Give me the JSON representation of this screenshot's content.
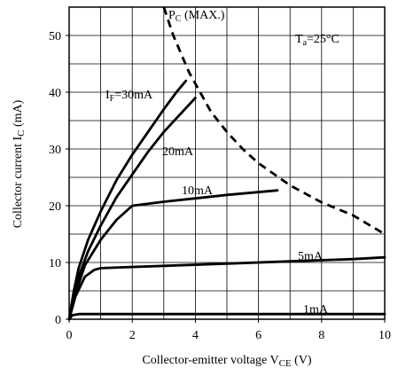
{
  "chart_data": {
    "type": "line",
    "xlabel": "Collector-emitter voltage V",
    "xlabel_sub": "CE",
    "xlabel_unit": " (V)",
    "ylabel": "Collector current I",
    "ylabel_sub": "C",
    "ylabel_unit": " (mA)",
    "xlim": [
      0,
      10
    ],
    "ylim": [
      0,
      55
    ],
    "x_ticks": [
      0,
      2,
      4,
      6,
      8,
      10
    ],
    "y_ticks": [
      0,
      10,
      20,
      30,
      40,
      50
    ],
    "x_tick_labels": [
      "0",
      "2",
      "4",
      "6",
      "8",
      "10"
    ],
    "y_tick_labels": [
      "0",
      "10",
      "20",
      "30",
      "40",
      "50"
    ],
    "grid": true,
    "annotations": {
      "pmax_main": "P",
      "pmax_sub": "C",
      "pmax_rest": " (MAX.)",
      "temp_main": "T",
      "temp_sub": "a",
      "temp_rest": "=25°C",
      "if_main": "I",
      "if_sub": "F",
      "if_rest": "=30mA"
    },
    "series": [
      {
        "name": "Iₐ=30mA",
        "label": "=30mA",
        "points": [
          [
            0,
            0
          ],
          [
            0.15,
            5
          ],
          [
            0.3,
            9
          ],
          [
            0.6,
            14
          ],
          [
            1,
            19
          ],
          [
            1.5,
            24.5
          ],
          [
            2,
            29
          ],
          [
            2.5,
            33
          ],
          [
            3,
            37
          ],
          [
            3.4,
            40
          ],
          [
            3.7,
            42
          ]
        ]
      },
      {
        "name": "20mA",
        "label": "20mA",
        "points": [
          [
            0,
            0
          ],
          [
            0.15,
            4
          ],
          [
            0.3,
            7.5
          ],
          [
            0.6,
            12
          ],
          [
            1,
            16.5
          ],
          [
            1.5,
            21.5
          ],
          [
            2,
            25.5
          ],
          [
            2.5,
            29.5
          ],
          [
            3,
            33
          ],
          [
            3.5,
            36
          ],
          [
            4,
            39
          ]
        ]
      },
      {
        "name": "10mA",
        "label": "10mA",
        "points": [
          [
            0,
            0
          ],
          [
            0.2,
            4.5
          ],
          [
            0.5,
            9.5
          ],
          [
            1,
            14
          ],
          [
            1.5,
            17.5
          ],
          [
            2,
            20
          ],
          [
            3,
            20.7
          ],
          [
            4,
            21.3
          ],
          [
            5,
            21.9
          ],
          [
            6.6,
            22.7
          ]
        ]
      },
      {
        "name": "5mA",
        "label": "5mA",
        "points": [
          [
            0,
            0
          ],
          [
            0.2,
            4
          ],
          [
            0.5,
            7.5
          ],
          [
            0.8,
            8.7
          ],
          [
            1,
            9
          ],
          [
            3,
            9.4
          ],
          [
            5,
            9.8
          ],
          [
            7,
            10.2
          ],
          [
            9,
            10.6
          ],
          [
            10,
            10.9
          ]
        ]
      },
      {
        "name": "1mA",
        "label": "1mA",
        "points": [
          [
            0,
            0
          ],
          [
            0.1,
            0.7
          ],
          [
            0.3,
            0.9
          ],
          [
            10,
            0.9
          ]
        ]
      }
    ],
    "pc_max_curve": {
      "style": "dashed",
      "points": [
        [
          3.0,
          55
        ],
        [
          3.3,
          50
        ],
        [
          3.8,
          43.5
        ],
        [
          4.5,
          36.5
        ],
        [
          5,
          33
        ],
        [
          5.5,
          30
        ],
        [
          6,
          27.5
        ],
        [
          7,
          23.6
        ],
        [
          8,
          20.6
        ],
        [
          9,
          18.3
        ],
        [
          10,
          15
        ]
      ]
    }
  }
}
